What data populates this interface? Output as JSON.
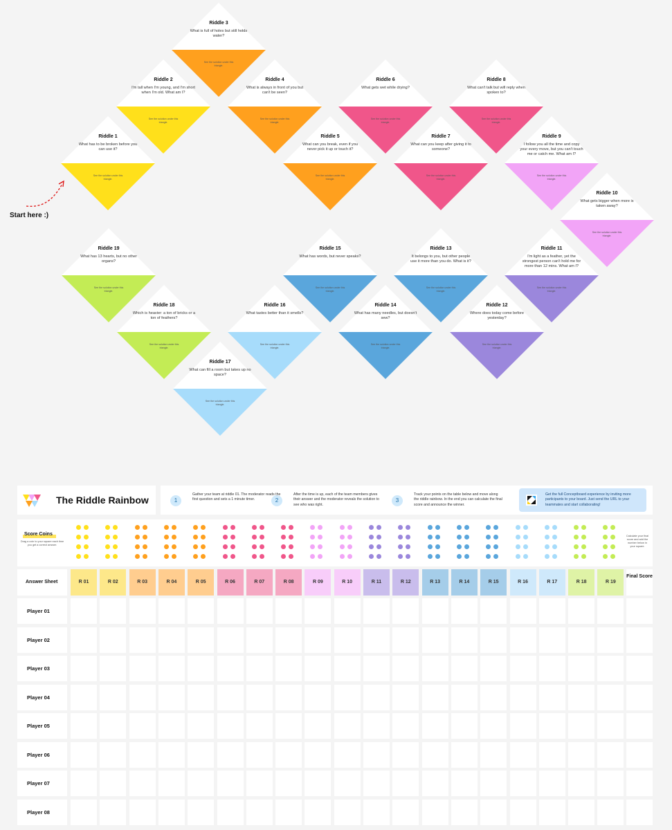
{
  "board": {
    "start_label": "Start here :)",
    "solution_hint": "See the solution under this triangle.",
    "riddles": [
      {
        "title": "Riddle 1",
        "question": "What has to be broken before you can use it?",
        "color": "#ffe01b"
      },
      {
        "title": "Riddle 2",
        "question": "I'm tall when I'm young, and I'm short when I'm old. What am I?",
        "color": "#ffe01b"
      },
      {
        "title": "Riddle 3",
        "question": "What is full of holes but still holds water?",
        "color": "#ffa01e"
      },
      {
        "title": "Riddle 4",
        "question": "What is always in front of you but can't be seen?",
        "color": "#ffa01e"
      },
      {
        "title": "Riddle 5",
        "question": "What can you break, even if you never pick it up or touch it?",
        "color": "#ffa01e"
      },
      {
        "title": "Riddle 6",
        "question": "What gets wet while drying?",
        "color": "#f0568a"
      },
      {
        "title": "Riddle 7",
        "question": "What can you keep after giving it to someone?",
        "color": "#f0568a"
      },
      {
        "title": "Riddle 8",
        "question": "What can't talk but will reply when spoken to?",
        "color": "#f0568a"
      },
      {
        "title": "Riddle 9",
        "question": "I follow you all the time and copy your every move, but you can't touch me or catch me. What am I?",
        "color": "#f2a4f7"
      },
      {
        "title": "Riddle 10",
        "question": "What gets bigger when more is taken away?",
        "color": "#f2a4f7"
      },
      {
        "title": "Riddle 11",
        "question": "I'm light as a feather, yet the strongest person can't hold me for more than 12 mins. What am I?",
        "color": "#9b87dc"
      },
      {
        "title": "Riddle 12",
        "question": "Where does today come before yesterday?",
        "color": "#9b87dc"
      },
      {
        "title": "Riddle 13",
        "question": "It belongs to you, but other people use it more than you do. What is it?",
        "color": "#5aa6dc"
      },
      {
        "title": "Riddle 14",
        "question": "What has many needles, but doesn't sew?",
        "color": "#5aa6dc"
      },
      {
        "title": "Riddle 15",
        "question": "What has words, but never speaks?",
        "color": "#5aa6dc"
      },
      {
        "title": "Riddle 16",
        "question": "What tastes better than it smells?",
        "color": "#a7dcfb"
      },
      {
        "title": "Riddle 17",
        "question": "What can fill a room but takes up no space?",
        "color": "#a7dcfb"
      },
      {
        "title": "Riddle 18",
        "question": "Which is heavier: a ton of bricks or a ton of feathers?",
        "color": "#c3ec55"
      },
      {
        "title": "Riddle 19",
        "question": "What has 13 hearts, but no other organs?",
        "color": "#c3ec55"
      }
    ]
  },
  "header": {
    "title": "The Riddle Rainbow",
    "steps": [
      {
        "num": "1",
        "text": "Gather your team at riddle 01. The moderator reads the first question and sets a 1 minute timer."
      },
      {
        "num": "2",
        "text": "After the time is up, each of the team members gives their answer and the moderator reveals the solution to see who was right."
      },
      {
        "num": "3",
        "text": "Track your points on the table below and move along the riddle rainbow. In the end you can calculate the final score and announce the winner."
      }
    ],
    "promo": "Get the full Conceptboard experience by inviting more participants to your board. Just send the URL to your teammates and start collaborating!"
  },
  "coins": {
    "label": "Score Coins",
    "sub": "Drag a coin to your square each time you get a correct answer.",
    "note": "Calculate your final score and add the number below in your square.",
    "colors": [
      "#ffe01b",
      "#ffe01b",
      "#ffa01e",
      "#ffa01e",
      "#ffa01e",
      "#f0568a",
      "#f0568a",
      "#f0568a",
      "#f2a4f7",
      "#f2a4f7",
      "#9b87dc",
      "#9b87dc",
      "#5aa6dc",
      "#5aa6dc",
      "#5aa6dc",
      "#a7dcfb",
      "#a7dcfb",
      "#c3ec55",
      "#c3ec55"
    ]
  },
  "sheet": {
    "label": "Answer Sheet",
    "final_label": "Final Score",
    "columns": [
      "R 01",
      "R 02",
      "R 03",
      "R 04",
      "R 05",
      "R 06",
      "R 07",
      "R 08",
      "R 09",
      "R 10",
      "R 11",
      "R 12",
      "R 13",
      "R 14",
      "R 15",
      "R 16",
      "R 17",
      "R 18",
      "R 19"
    ],
    "header_colors": [
      "#fde88a",
      "#fde88a",
      "#ffcd8f",
      "#ffcd8f",
      "#ffcd8f",
      "#f5a8c2",
      "#f5a8c2",
      "#f5a8c2",
      "#f8cdfa",
      "#f8cdfa",
      "#c9bdec",
      "#c9bdec",
      "#a5cde9",
      "#a5cde9",
      "#a5cde9",
      "#cfe9fb",
      "#cfe9fb",
      "#dff3a6",
      "#dff3a6"
    ],
    "players": [
      "Player 01",
      "Player 02",
      "Player 03",
      "Player 04",
      "Player 05",
      "Player 06",
      "Player 07",
      "Player 08"
    ]
  }
}
